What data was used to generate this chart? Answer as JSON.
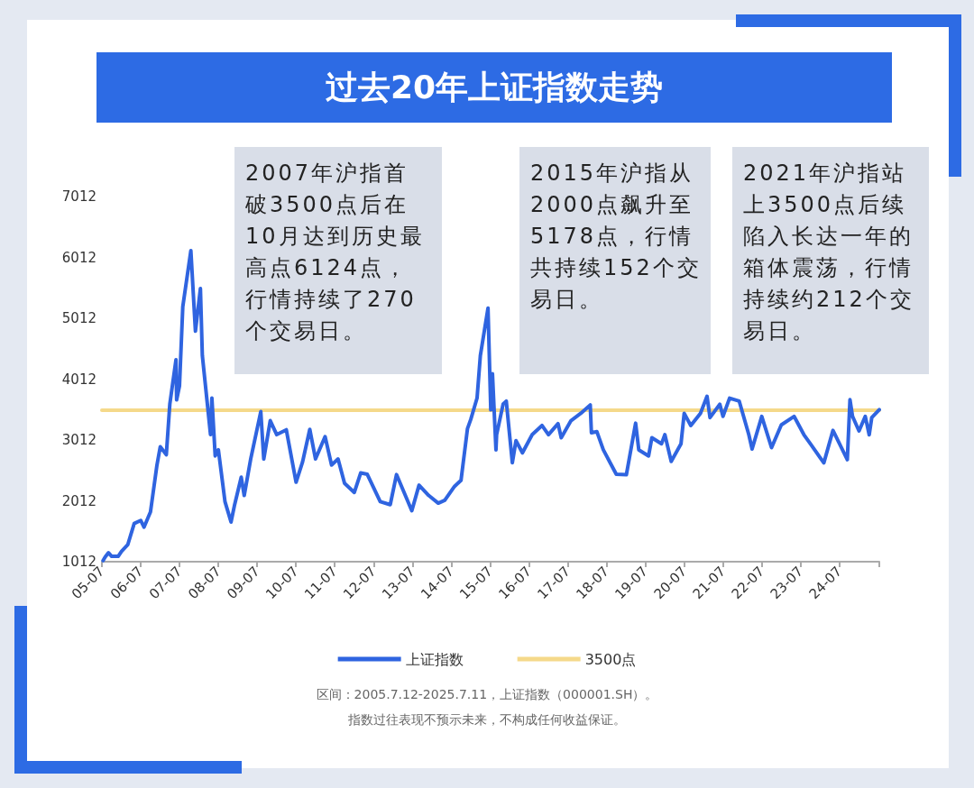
{
  "chart_data": {
    "type": "line",
    "title": "过去20年上证指数走势",
    "annotations": [
      "2007年沪指首破3500点后在10月达到历史最高点6124点，行情持续了270个交易日。",
      "2015年沪指从2000点飙升至5178点，行情共持续152个交易日。",
      "2021年沪指站上3500点后续陷入长达一年的箱体震荡，行情持续约212个交易日。",
      "区间：2005.7.12-2025.7.11，上证指数（000001.SH）。",
      "指数过往表现不预示未来，不构成任何收益保证。"
    ],
    "series": [
      {
        "name": "上证指数",
        "color": "#2f64e0",
        "x": [
          "2005-07-12",
          "2005-08",
          "2005-09",
          "2005-10",
          "2005-12",
          "2006-01",
          "2006-03",
          "2006-05",
          "2006-07",
          "2006-08",
          "2006-10",
          "2006-12",
          "2007-01",
          "2007-02-27",
          "2007-04",
          "2007-05-29",
          "2007-06-04",
          "2007-07",
          "2007-08",
          "2007-10-16",
          "2007-11-28",
          "2008-01-14",
          "2008-02",
          "2008-04-18",
          "2008-05",
          "2008-06",
          "2008-07",
          "2008-09",
          "2008-10-28",
          "2008-12",
          "2009-02",
          "2009-03",
          "2009-05",
          "2009-08-04",
          "2009-09",
          "2009-11",
          "2010-01",
          "2010-04",
          "2010-07-02",
          "2010-09",
          "2010-11-08",
          "2011-01",
          "2011-04",
          "2011-06",
          "2011-08",
          "2011-10",
          "2012-01",
          "2012-03",
          "2012-05",
          "2012-09",
          "2012-12-04",
          "2013-02",
          "2013-06-25",
          "2013-09",
          "2013-12",
          "2014-03",
          "2014-05",
          "2014-08",
          "2014-10",
          "2014-12",
          "2015-01",
          "2015-03",
          "2015-04",
          "2015-06-12",
          "2015-07-08",
          "2015-07-24",
          "2015-08-26",
          "2015-09",
          "2015-11",
          "2015-12",
          "2016-01-27",
          "2016-03",
          "2016-05",
          "2016-08",
          "2016-11",
          "2017-01",
          "2017-04",
          "2017-05",
          "2017-08",
          "2017-11",
          "2018-01-29",
          "2018-02-09",
          "2018-04",
          "2018-06",
          "2018-08",
          "2018-10",
          "2019-01-04",
          "2019-04",
          "2019-05",
          "2019-08",
          "2019-09",
          "2019-12",
          "2020-01",
          "2020-03",
          "2020-06",
          "2020-07",
          "2020-09",
          "2020-12",
          "2021-02",
          "2021-03",
          "2021-06",
          "2021-07",
          "2021-09",
          "2021-12",
          "2022-03",
          "2022-04",
          "2022-07",
          "2022-10",
          "2023-01",
          "2023-05",
          "2023-08",
          "2023-10",
          "2024-02-05",
          "2024-05",
          "2024-09-13",
          "2024-10-08",
          "2024-11",
          "2025-01",
          "2025-03",
          "2025-04-07",
          "2025-05",
          "2025-07-11"
        ],
        "values": [
          1030,
          1090,
          1160,
          1100,
          1100,
          1180,
          1290,
          1640,
          1690,
          1580,
          1830,
          2600,
          2900,
          2770,
          3600,
          4330,
          3670,
          3900,
          5200,
          6124,
          4800,
          5500,
          4400,
          3100,
          3700,
          2750,
          2850,
          2000,
          1664,
          1950,
          2400,
          2100,
          2700,
          3478,
          2700,
          3330,
          3100,
          3180,
          2319,
          2650,
          3186,
          2700,
          3067,
          2600,
          2700,
          2300,
          2150,
          2470,
          2450,
          2000,
          1949,
          2444,
          1849,
          2270,
          2100,
          1974,
          2020,
          2250,
          2350,
          3200,
          3350,
          3700,
          4400,
          5178,
          3507,
          4100,
          2850,
          3100,
          3600,
          3650,
          2638,
          3000,
          2800,
          3100,
          3250,
          3100,
          3280,
          3050,
          3330,
          3450,
          3587,
          3130,
          3150,
          2850,
          2650,
          2450,
          2440,
          3288,
          2850,
          2750,
          3050,
          2950,
          3100,
          2660,
          2950,
          3450,
          3250,
          3450,
          3730,
          3380,
          3600,
          3400,
          3700,
          3650,
          3100,
          2863,
          3400,
          2886,
          3260,
          3400,
          3100,
          2950,
          2635,
          3170,
          2689,
          3674,
          3400,
          3160,
          3400,
          3096,
          3380,
          3510
        ]
      },
      {
        "name": "3500点",
        "color": "#f5d98a",
        "x": [
          "2005-07",
          "2025-07-11"
        ],
        "values": [
          3500,
          3500
        ]
      }
    ],
    "xlim": [
      "2005-07",
      "2025-07-11"
    ],
    "xticks": [
      {
        "value": "2005-07",
        "label": "05-07"
      },
      {
        "value": "2006-07",
        "label": "06-07"
      },
      {
        "value": "2007-07",
        "label": "07-07"
      },
      {
        "value": "2008-07",
        "label": "08-07"
      },
      {
        "value": "2009-07",
        "label": "09-07"
      },
      {
        "value": "2010-07",
        "label": "10-07"
      },
      {
        "value": "2011-07",
        "label": "11-07"
      },
      {
        "value": "2012-07",
        "label": "12-07"
      },
      {
        "value": "2013-07",
        "label": "13-07"
      },
      {
        "value": "2014-07",
        "label": "14-07"
      },
      {
        "value": "2015-07",
        "label": "15-07"
      },
      {
        "value": "2016-07",
        "label": "16-07"
      },
      {
        "value": "2017-07",
        "label": "17-07"
      },
      {
        "value": "2018-07",
        "label": "18-07"
      },
      {
        "value": "2019-07",
        "label": "19-07"
      },
      {
        "value": "2020-07",
        "label": "20-07"
      },
      {
        "value": "2021-07",
        "label": "21-07"
      },
      {
        "value": "2022-07",
        "label": "22-07"
      },
      {
        "value": "2023-07",
        "label": "23-07"
      },
      {
        "value": "2024-07",
        "label": "24-07"
      },
      {
        "value": "2025-07-11",
        "label": null
      }
    ],
    "ylim": [
      1012,
      7012
    ],
    "yticks": [
      1012,
      2012,
      3012,
      4012,
      5012,
      6012,
      7012
    ],
    "legend": "bottom",
    "marker": "none",
    "line_style": "solid"
  }
}
